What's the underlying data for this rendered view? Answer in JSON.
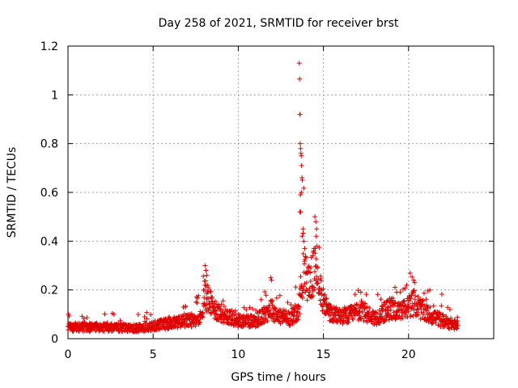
{
  "chart_data": {
    "type": "scatter",
    "title": "Day 258 of 2021, SRMTID for receiver brst",
    "xlabel": "GPS time / hours",
    "ylabel": "SRMTID / TECUs",
    "xlim": [
      0,
      25
    ],
    "ylim": [
      0,
      1.2
    ],
    "xticks": [
      0,
      5,
      10,
      15,
      20
    ],
    "xtick_labels": [
      "0",
      "5",
      "10",
      "15",
      "20"
    ],
    "yticks": [
      0,
      0.2,
      0.4,
      0.6,
      0.8,
      1.0,
      1.2
    ],
    "ytick_labels": [
      "0",
      "0.2",
      "0.4",
      "0.6",
      "0.8",
      "1",
      "1.2"
    ],
    "grid": true,
    "marker": "+",
    "color": "#e00000",
    "series": [
      {
        "name": "SRMTID",
        "x_range": [
          0,
          22.9
        ],
        "baseline": [
          [
            0.0,
            0.045
          ],
          [
            2.0,
            0.045
          ],
          [
            4.0,
            0.04
          ],
          [
            5.0,
            0.05
          ],
          [
            6.0,
            0.06
          ],
          [
            7.0,
            0.07
          ],
          [
            7.8,
            0.08
          ],
          [
            8.0,
            0.17
          ],
          [
            8.2,
            0.16
          ],
          [
            8.5,
            0.12
          ],
          [
            9.0,
            0.1
          ],
          [
            10.0,
            0.07
          ],
          [
            11.0,
            0.07
          ],
          [
            11.5,
            0.09
          ],
          [
            11.9,
            0.12
          ],
          [
            12.3,
            0.09
          ],
          [
            13.0,
            0.08
          ],
          [
            13.5,
            0.1
          ],
          [
            13.8,
            0.25
          ],
          [
            14.2,
            0.22
          ],
          [
            14.6,
            0.28
          ],
          [
            15.0,
            0.14
          ],
          [
            15.5,
            0.09
          ],
          [
            16.5,
            0.09
          ],
          [
            17.2,
            0.11
          ],
          [
            18.0,
            0.08
          ],
          [
            19.0,
            0.12
          ],
          [
            19.5,
            0.1
          ],
          [
            20.3,
            0.14
          ],
          [
            21.0,
            0.1
          ],
          [
            22.0,
            0.07
          ],
          [
            22.9,
            0.05
          ]
        ],
        "outliers": [
          [
            13.58,
            1.13
          ],
          [
            13.6,
            1.065
          ],
          [
            13.62,
            0.92
          ],
          [
            13.64,
            0.8
          ],
          [
            13.66,
            0.78
          ],
          [
            13.68,
            0.76
          ],
          [
            13.7,
            0.75
          ],
          [
            13.72,
            0.71
          ],
          [
            13.74,
            0.66
          ],
          [
            13.76,
            0.65
          ],
          [
            13.7,
            0.6
          ],
          [
            13.65,
            0.59
          ],
          [
            13.62,
            0.52
          ],
          [
            13.67,
            0.52
          ],
          [
            14.5,
            0.5
          ],
          [
            14.55,
            0.48
          ],
          [
            14.6,
            0.45
          ],
          [
            14.58,
            0.42
          ],
          [
            14.62,
            0.38
          ],
          [
            13.8,
            0.45
          ],
          [
            13.75,
            0.42
          ],
          [
            13.85,
            0.4
          ],
          [
            13.9,
            0.37
          ],
          [
            8.05,
            0.3
          ],
          [
            8.1,
            0.28
          ],
          [
            8.15,
            0.26
          ],
          [
            11.9,
            0.25
          ],
          [
            11.95,
            0.24
          ],
          [
            20.3,
            0.24
          ],
          [
            20.35,
            0.23
          ],
          [
            17.2,
            0.19
          ],
          [
            19.2,
            0.21
          ],
          [
            19.3,
            0.19
          ],
          [
            2.7,
            0.1
          ],
          [
            6.9,
            0.13
          ]
        ]
      }
    ]
  }
}
